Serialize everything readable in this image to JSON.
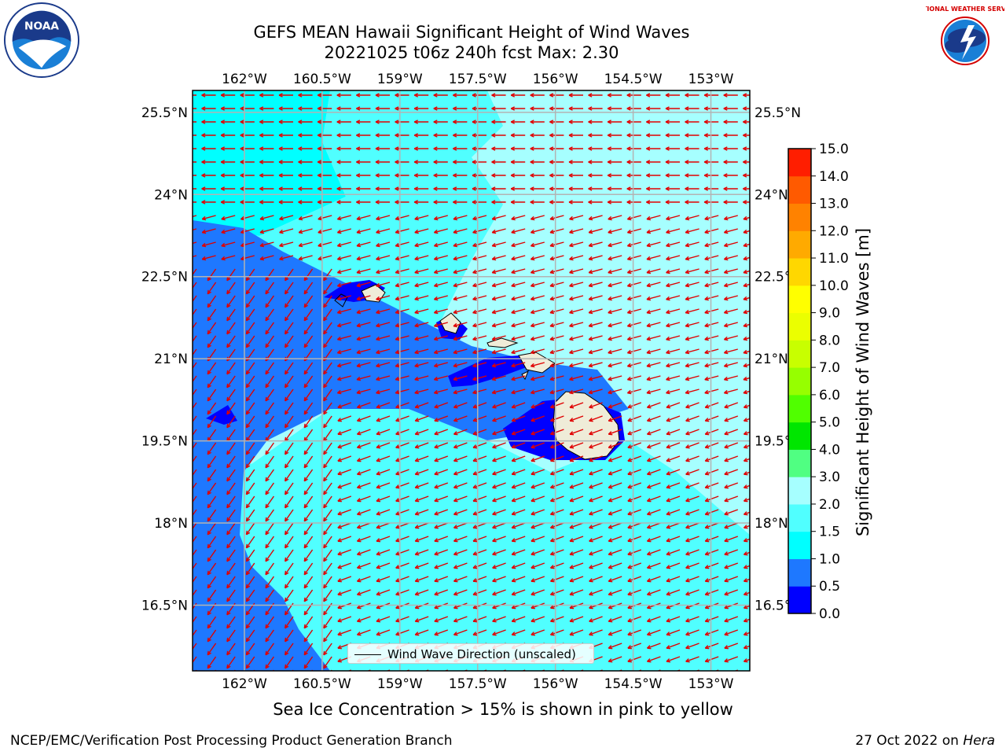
{
  "title": {
    "line1": "GEFS MEAN Hawaii Significant Height of Wind Waves",
    "line2": "20221025 t06z 240h fcst   Max: 2.30"
  },
  "logos": {
    "left": {
      "icon": "noaa-logo",
      "text": "NOAA"
    },
    "right": {
      "icon": "nws-logo",
      "text": "NATIONAL WEATHER SERVICE"
    }
  },
  "map": {
    "lon_ticks": [
      "162°W",
      "160.5°W",
      "159°W",
      "157.5°W",
      "156°W",
      "154.5°W",
      "153°W"
    ],
    "lat_ticks": [
      "25.5°N",
      "24°N",
      "22.5°N",
      "21°N",
      "19.5°N",
      "18°N",
      "16.5°N"
    ],
    "extent": {
      "lon_min": -163.0,
      "lon_max": -152.25,
      "lat_min": 15.3,
      "lat_max": 25.9
    },
    "colors": {
      "land": "#efecd8",
      "arrow": "#e00000",
      "grid": "#b3b3b3"
    }
  },
  "colorbar": {
    "label": "Significant Height of Wind Waves [m]",
    "ticks": [
      "0.0",
      "0.5",
      "1.0",
      "1.5",
      "2.0",
      "3.0",
      "4.0",
      "5.0",
      "6.0",
      "7.0",
      "8.0",
      "9.0",
      "10.0",
      "11.0",
      "12.0",
      "13.0",
      "14.0",
      "15.0"
    ],
    "colors": [
      "#0000ff",
      "#1e78ff",
      "#00ffff",
      "#50ffff",
      "#a6ffff",
      "#50ff82",
      "#00e600",
      "#50ff00",
      "#96ff00",
      "#c8ff00",
      "#ebff00",
      "#ffff00",
      "#ffd700",
      "#ffaa00",
      "#ff8200",
      "#ff5a00",
      "#ff1e00"
    ]
  },
  "legend": {
    "label": "Wind Wave Direction (unscaled)"
  },
  "footer": {
    "note": "Sea Ice Concentration > 15% is shown in pink to yellow",
    "credit_left": "NCEP/EMC/Verification Post Processing Product Generation Branch",
    "credit_right_prefix": "27 Oct 2022 on ",
    "credit_right_host": "Hera"
  }
}
